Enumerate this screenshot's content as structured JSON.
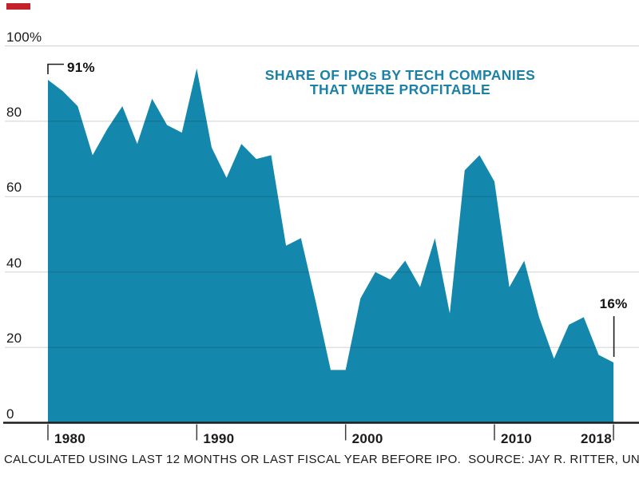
{
  "branding": {
    "accent_bar_color": "#c5212b"
  },
  "chart_data": {
    "type": "area",
    "title_line1": "SHARE OF IPOs BY TECH COMPANIES",
    "title_line2": "THAT WERE PROFITABLE",
    "x": [
      1980,
      1981,
      1982,
      1983,
      1984,
      1985,
      1986,
      1987,
      1988,
      1989,
      1990,
      1991,
      1992,
      1993,
      1994,
      1995,
      1996,
      1997,
      1998,
      1999,
      2000,
      2001,
      2002,
      2003,
      2004,
      2005,
      2006,
      2007,
      2008,
      2009,
      2010,
      2011,
      2012,
      2013,
      2014,
      2015,
      2016,
      2017,
      2018
    ],
    "values": [
      91,
      88,
      84,
      71,
      78,
      84,
      74,
      86,
      79,
      77,
      94,
      73,
      65,
      74,
      70,
      71,
      47,
      49,
      32,
      14,
      14,
      33,
      40,
      38,
      43,
      36,
      49,
      29,
      67,
      71,
      64,
      36,
      43,
      28,
      17,
      26,
      28,
      18,
      16
    ],
    "ylim": [
      0,
      100
    ],
    "ytick_values": [
      100,
      80,
      60,
      40,
      20,
      0
    ],
    "ytick_labels": [
      "100%",
      "80",
      "60",
      "40",
      "20",
      "0"
    ],
    "xtick_values": [
      1980,
      1990,
      2000,
      2010,
      2018
    ],
    "xtick_labels": [
      "1980",
      "1990",
      "2000",
      "2010",
      "2018"
    ],
    "grid": true,
    "legend": "none",
    "annotations": [
      {
        "label": "91%",
        "year": 1980,
        "value": 91,
        "callout": "bracket"
      },
      {
        "label": "16%",
        "year": 2018,
        "value": 16,
        "callout": "drop-line"
      }
    ],
    "colors": {
      "area": "#1487ac",
      "title": "#1b81a6",
      "axis": "#1d1d1d",
      "tick": "#3d3d3d",
      "grid": "rgba(20,20,20,0.2)"
    }
  },
  "footer": {
    "note": "CALCULATED USING LAST 12 MONTHS OR LAST FISCAL YEAR BEFORE IPO.",
    "source": "SOURCE: JAY R. RITTER, UNIVERSITY OF FLORIDA"
  }
}
